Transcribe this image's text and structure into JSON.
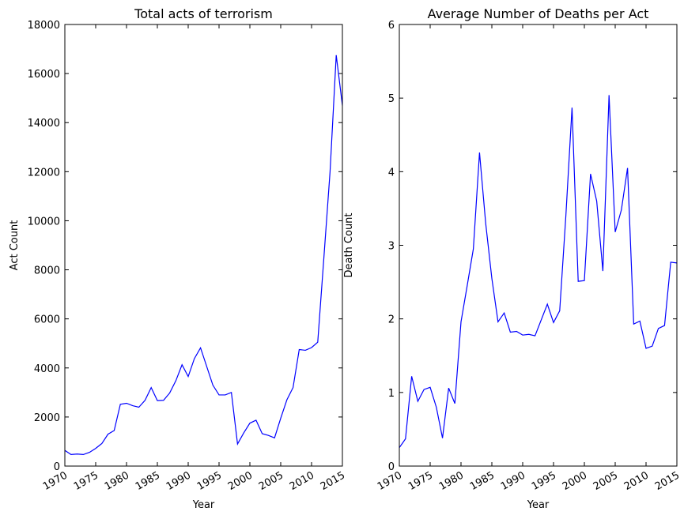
{
  "chart_data": [
    {
      "type": "line",
      "title": "Total acts of terrorism",
      "x_label": "Year",
      "y_label": "Act Count",
      "x": [
        1970,
        1971,
        1972,
        1973,
        1974,
        1975,
        1976,
        1977,
        1978,
        1979,
        1980,
        1981,
        1982,
        1983,
        1984,
        1985,
        1986,
        1987,
        1988,
        1989,
        1990,
        1991,
        1992,
        1994,
        1995,
        1996,
        1997,
        1998,
        1999,
        2000,
        2001,
        2002,
        2003,
        2004,
        2005,
        2006,
        2007,
        2008,
        2009,
        2010,
        2011,
        2012,
        2013,
        2014,
        2015
      ],
      "series": [
        {
          "color": "#0000ff",
          "values": [
            640,
            470,
            490,
            470,
            560,
            720,
            920,
            1300,
            1450,
            2520,
            2560,
            2460,
            2400,
            2680,
            3200,
            2670,
            2680,
            2980,
            3480,
            4130,
            3650,
            4380,
            4820,
            3300,
            2900,
            2900,
            3000,
            900,
            1350,
            1750,
            1870,
            1320,
            1250,
            1150,
            1950,
            2700,
            3200,
            4750,
            4720,
            4830,
            5050,
            8500,
            12000,
            16750,
            14700
          ]
        }
      ],
      "xlim": [
        1970,
        2015
      ],
      "xticks": [
        1970,
        1975,
        1980,
        1985,
        1990,
        1995,
        2000,
        2005,
        2010,
        2015
      ],
      "ylim": [
        0,
        18000
      ],
      "yticks": [
        0,
        2000,
        4000,
        6000,
        8000,
        10000,
        12000,
        14000,
        16000,
        18000
      ]
    },
    {
      "type": "line",
      "title": "Average Number of Deaths per Act",
      "x_label": "Year",
      "y_label": "Death Count",
      "x": [
        1970,
        1971,
        1972,
        1973,
        1974,
        1975,
        1976,
        1977,
        1978,
        1979,
        1980,
        1981,
        1982,
        1983,
        1984,
        1985,
        1986,
        1987,
        1988,
        1989,
        1990,
        1991,
        1992,
        1994,
        1995,
        1996,
        1997,
        1998,
        1999,
        2000,
        2001,
        2002,
        2003,
        2004,
        2005,
        2006,
        2007,
        2008,
        2009,
        2010,
        2011,
        2012,
        2013,
        2014,
        2015
      ],
      "series": [
        {
          "color": "#0000ff",
          "values": [
            0.25,
            0.37,
            1.22,
            0.88,
            1.04,
            1.07,
            0.8,
            0.38,
            1.06,
            0.85,
            1.96,
            2.45,
            2.95,
            4.26,
            3.3,
            2.55,
            1.96,
            2.08,
            1.82,
            1.83,
            1.78,
            1.79,
            1.77,
            2.2,
            1.95,
            2.11,
            3.4,
            4.87,
            2.51,
            2.52,
            3.97,
            3.6,
            2.65,
            5.04,
            3.18,
            3.48,
            4.05,
            1.93,
            1.97,
            1.6,
            1.63,
            1.87,
            1.91,
            2.77,
            2.76
          ]
        }
      ],
      "xlim": [
        1970,
        2015
      ],
      "xticks": [
        1970,
        1975,
        1980,
        1985,
        1990,
        1995,
        2000,
        2005,
        2010,
        2015
      ],
      "ylim": [
        0,
        6
      ],
      "yticks": [
        0,
        1,
        2,
        3,
        4,
        5,
        6
      ]
    }
  ]
}
